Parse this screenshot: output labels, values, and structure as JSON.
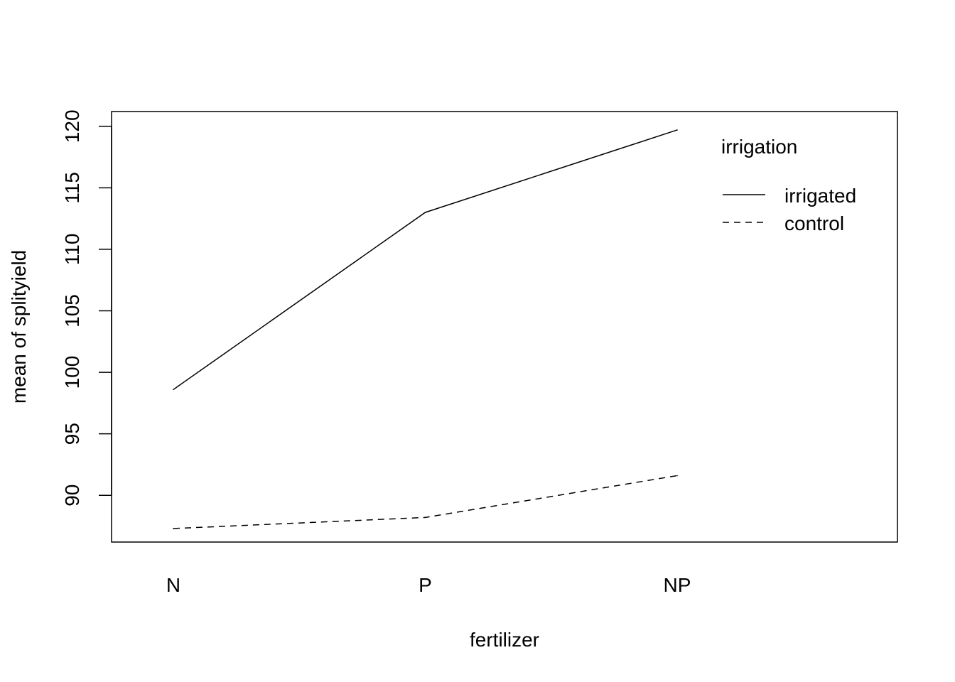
{
  "chart_data": {
    "type": "line",
    "title": "",
    "xlabel": "fertilizer",
    "ylabel": "mean of splityield",
    "categories": [
      "N",
      "P",
      "NP"
    ],
    "ylim": [
      86.2,
      121.2
    ],
    "yticks": [
      90,
      95,
      100,
      105,
      110,
      115,
      120
    ],
    "grid": false,
    "legend": {
      "title": "irrigation",
      "placement": "top-right"
    },
    "series": [
      {
        "name": "irrigated",
        "values": [
          98.6,
          113.0,
          119.7
        ],
        "line_style": "solid",
        "color": "#000000"
      },
      {
        "name": "control",
        "values": [
          87.3,
          88.2,
          91.6
        ],
        "line_style": "dashed",
        "color": "#000000"
      }
    ]
  }
}
